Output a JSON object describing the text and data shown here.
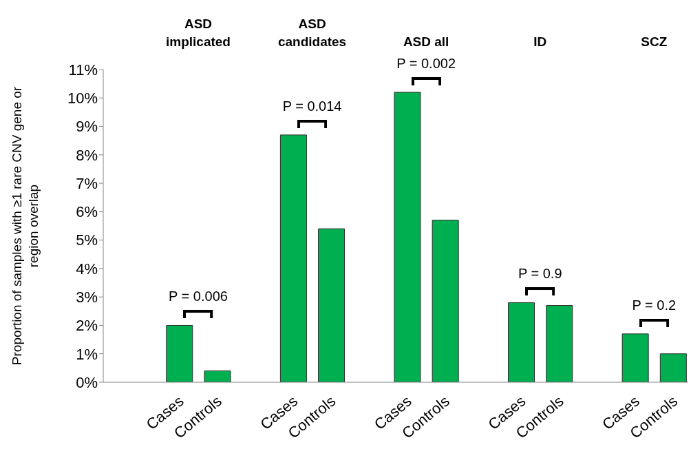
{
  "chart_data": {
    "type": "bar",
    "ylabel": "Proportion of samples with ≥1 rare CNV gene or region overlap",
    "categories": [
      "Cases",
      "Controls",
      "Cases",
      "Controls",
      "Cases",
      "Controls",
      "Cases",
      "Controls",
      "Cases",
      "Controls"
    ],
    "values": [
      2.0,
      0.4,
      8.7,
      5.4,
      10.2,
      5.7,
      2.8,
      2.7,
      1.7,
      1.0
    ],
    "color": "#00b050",
    "ylim": [
      0,
      11
    ],
    "yticks": [
      {
        "value": 0,
        "label": "0%"
      },
      {
        "value": 1,
        "label": "1%"
      },
      {
        "value": 2,
        "label": "2%"
      },
      {
        "value": 3,
        "label": "3%"
      },
      {
        "value": 4,
        "label": "4%"
      },
      {
        "value": 5,
        "label": "5%"
      },
      {
        "value": 6,
        "label": "6%"
      },
      {
        "value": 7,
        "label": "7%"
      },
      {
        "value": 8,
        "label": "8%"
      },
      {
        "value": 9,
        "label": "9%"
      },
      {
        "value": 10,
        "label": "10%"
      },
      {
        "value": 11,
        "label": "11%"
      }
    ],
    "annotations": [
      "ASD implicated",
      "ASD candidates",
      "ASD all",
      "ID",
      "SCZ",
      "P = 0.006",
      "P = 0.014",
      "P = 0.002",
      "P = 0.9",
      "P = 0.2"
    ],
    "grid": false,
    "legend": false
  }
}
